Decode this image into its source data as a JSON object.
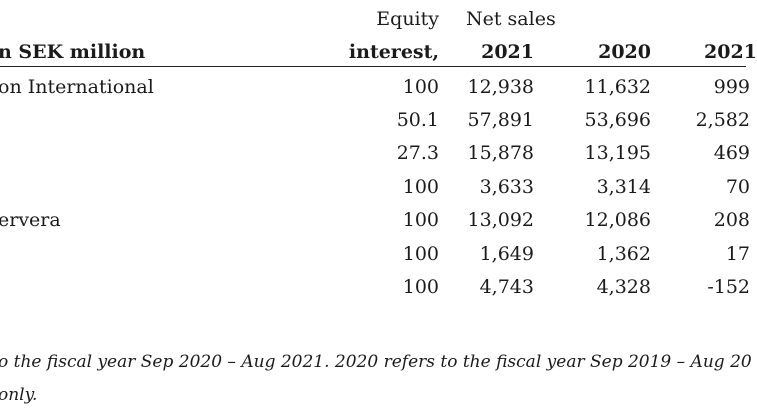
{
  "header": {
    "unit_label": "n SEK million",
    "equity_line1": "Equity",
    "equity_line2": "interest,",
    "net_sales": "Net sales",
    "year1": "2021",
    "year2": "2020",
    "year3": "2021"
  },
  "rows": [
    {
      "name": "on International",
      "equity": "100",
      "sales_2021": "12,938",
      "sales_2020": "11,632",
      "col5": "999"
    },
    {
      "name": "",
      "equity": "50.1",
      "sales_2021": "57,891",
      "sales_2020": "53,696",
      "col5": "2,582"
    },
    {
      "name": "",
      "equity": "27.3",
      "sales_2021": "15,878",
      "sales_2020": "13,195",
      "col5": "469"
    },
    {
      "name": "",
      "equity": "100",
      "sales_2021": "3,633",
      "sales_2020": "3,314",
      "col5": "70"
    },
    {
      "name": "ervera",
      "equity": "100",
      "sales_2021": "13,092",
      "sales_2020": "12,086",
      "col5": "208"
    },
    {
      "name": "",
      "equity": "100",
      "sales_2021": "1,649",
      "sales_2020": "1,362",
      "col5": "17"
    },
    {
      "name": "",
      "equity": "100",
      "sales_2021": "4,743",
      "sales_2020": "4,328",
      "col5": "-152"
    }
  ],
  "footnotes": {
    "line1": "o the fiscal year Sep 2020 – Aug 2021. 2020 refers to the fiscal year Sep 2019 – Aug 20",
    "line2": "only."
  }
}
